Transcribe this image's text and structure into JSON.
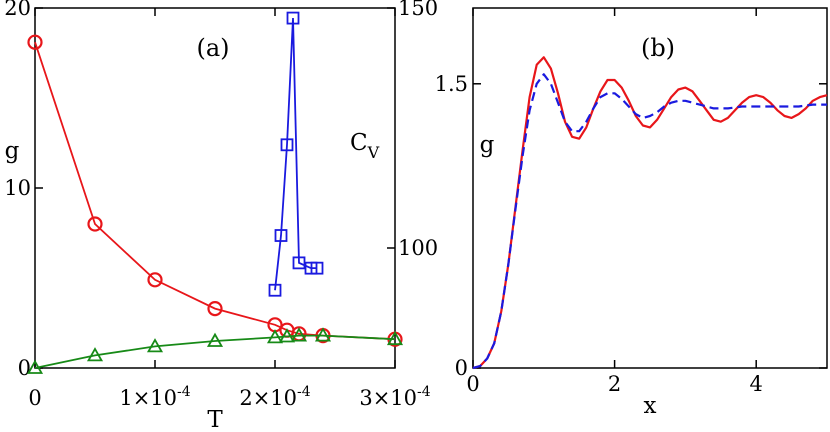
{
  "chart_data": [
    {
      "type": "scatter",
      "panel_label": "(a)",
      "xlabel": "T",
      "ylabel_left": "g",
      "ylabel_right_main": "C",
      "ylabel_right_sub": "V",
      "xlim": [
        0,
        0.0003
      ],
      "ylim_left": [
        0,
        20
      ],
      "ylim_right": [
        75,
        150
      ],
      "x_ticks": [
        {
          "value": 0,
          "mantissa": "0",
          "exponent": ""
        },
        {
          "value": 0.0001,
          "mantissa": "1×10",
          "exponent": "-4"
        },
        {
          "value": 0.0002,
          "mantissa": "2×10",
          "exponent": "-4"
        },
        {
          "value": 0.0003,
          "mantissa": "3×10",
          "exponent": "-4"
        }
      ],
      "y_ticks_left": [
        {
          "value": 0,
          "label": "0"
        },
        {
          "value": 10,
          "label": "10"
        },
        {
          "value": 20,
          "label": "20"
        }
      ],
      "y_ticks_right": [
        {
          "value": 100,
          "label": "100"
        },
        {
          "value": 150,
          "label": "150"
        }
      ],
      "series": [
        {
          "axis": "left",
          "marker": "circle",
          "color": "#e8161a",
          "points": [
            [
              0,
              18.1
            ],
            [
              5e-05,
              8.0
            ],
            [
              0.0001,
              4.9
            ],
            [
              0.00015,
              3.3
            ],
            [
              0.0002,
              2.4
            ],
            [
              0.00021,
              2.1
            ],
            [
              0.00022,
              1.9
            ],
            [
              0.00024,
              1.8
            ],
            [
              0.0003,
              1.6
            ]
          ]
        },
        {
          "axis": "left",
          "marker": "triangle",
          "color": "#178a17",
          "points": [
            [
              0,
              0.0
            ],
            [
              5e-05,
              0.7
            ],
            [
              0.0001,
              1.2
            ],
            [
              0.00015,
              1.5
            ],
            [
              0.0002,
              1.7
            ],
            [
              0.00021,
              1.75
            ],
            [
              0.00022,
              1.8
            ],
            [
              0.00024,
              1.8
            ],
            [
              0.0003,
              1.6
            ]
          ]
        },
        {
          "axis": "right",
          "marker": "square",
          "color": "#1a1adf",
          "points": [
            [
              0.0002,
              91.2
            ],
            [
              0.000205,
              102.6
            ],
            [
              0.00021,
              121.5
            ],
            [
              0.000215,
              147.9
            ],
            [
              0.00022,
              96.9
            ],
            [
              0.00023,
              95.8
            ],
            [
              0.000235,
              95.8
            ]
          ]
        }
      ]
    },
    {
      "type": "line",
      "panel_label": "(b)",
      "xlabel": "x",
      "ylabel": "g",
      "xlim": [
        0,
        5
      ],
      "ylim": [
        0,
        1.9
      ],
      "x_ticks": [
        {
          "value": 0,
          "label": "0"
        },
        {
          "value": 2,
          "label": "2"
        },
        {
          "value": 4,
          "label": "4"
        }
      ],
      "y_ticks": [
        {
          "value": 0,
          "label": "0"
        },
        {
          "value": 1.5,
          "label": "1.5"
        }
      ],
      "series": [
        {
          "style": "solid",
          "color": "#e8161a",
          "points": [
            [
              0,
              0
            ],
            [
              0.1,
              0.01
            ],
            [
              0.2,
              0.05
            ],
            [
              0.3,
              0.13
            ],
            [
              0.4,
              0.3
            ],
            [
              0.5,
              0.55
            ],
            [
              0.6,
              0.85
            ],
            [
              0.7,
              1.15
            ],
            [
              0.8,
              1.43
            ],
            [
              0.9,
              1.6
            ],
            [
              1.0,
              1.64
            ],
            [
              1.1,
              1.58
            ],
            [
              1.2,
              1.45
            ],
            [
              1.3,
              1.3
            ],
            [
              1.4,
              1.22
            ],
            [
              1.5,
              1.21
            ],
            [
              1.6,
              1.27
            ],
            [
              1.7,
              1.37
            ],
            [
              1.8,
              1.46
            ],
            [
              1.9,
              1.52
            ],
            [
              2.0,
              1.52
            ],
            [
              2.1,
              1.48
            ],
            [
              2.2,
              1.41
            ],
            [
              2.3,
              1.33
            ],
            [
              2.4,
              1.28
            ],
            [
              2.5,
              1.27
            ],
            [
              2.6,
              1.31
            ],
            [
              2.7,
              1.37
            ],
            [
              2.8,
              1.43
            ],
            [
              2.9,
              1.47
            ],
            [
              3.0,
              1.48
            ],
            [
              3.1,
              1.46
            ],
            [
              3.2,
              1.41
            ],
            [
              3.3,
              1.36
            ],
            [
              3.4,
              1.31
            ],
            [
              3.5,
              1.3
            ],
            [
              3.6,
              1.32
            ],
            [
              3.7,
              1.36
            ],
            [
              3.8,
              1.4
            ],
            [
              3.9,
              1.43
            ],
            [
              4.0,
              1.44
            ],
            [
              4.1,
              1.43
            ],
            [
              4.2,
              1.4
            ],
            [
              4.3,
              1.36
            ],
            [
              4.4,
              1.33
            ],
            [
              4.5,
              1.32
            ],
            [
              4.6,
              1.34
            ],
            [
              4.7,
              1.37
            ],
            [
              4.8,
              1.41
            ],
            [
              4.9,
              1.43
            ],
            [
              5.0,
              1.44
            ]
          ]
        },
        {
          "style": "dashed",
          "color": "#1a1adf",
          "points": [
            [
              0,
              0
            ],
            [
              0.1,
              0.01
            ],
            [
              0.2,
              0.05
            ],
            [
              0.3,
              0.13
            ],
            [
              0.4,
              0.3
            ],
            [
              0.5,
              0.55
            ],
            [
              0.6,
              0.84
            ],
            [
              0.7,
              1.12
            ],
            [
              0.8,
              1.36
            ],
            [
              0.9,
              1.5
            ],
            [
              1.0,
              1.55
            ],
            [
              1.1,
              1.5
            ],
            [
              1.2,
              1.4
            ],
            [
              1.3,
              1.3
            ],
            [
              1.4,
              1.25
            ],
            [
              1.5,
              1.25
            ],
            [
              1.6,
              1.3
            ],
            [
              1.7,
              1.37
            ],
            [
              1.8,
              1.43
            ],
            [
              1.9,
              1.45
            ],
            [
              2.0,
              1.45
            ],
            [
              2.1,
              1.42
            ],
            [
              2.2,
              1.38
            ],
            [
              2.3,
              1.34
            ],
            [
              2.4,
              1.32
            ],
            [
              2.5,
              1.33
            ],
            [
              2.6,
              1.35
            ],
            [
              2.7,
              1.38
            ],
            [
              2.8,
              1.4
            ],
            [
              2.9,
              1.41
            ],
            [
              3.0,
              1.41
            ],
            [
              3.2,
              1.39
            ],
            [
              3.4,
              1.37
            ],
            [
              3.6,
              1.37
            ],
            [
              3.8,
              1.38
            ],
            [
              4.0,
              1.38
            ],
            [
              4.2,
              1.38
            ],
            [
              4.4,
              1.38
            ],
            [
              4.6,
              1.38
            ],
            [
              4.8,
              1.39
            ],
            [
              5.0,
              1.39
            ]
          ]
        }
      ]
    }
  ]
}
